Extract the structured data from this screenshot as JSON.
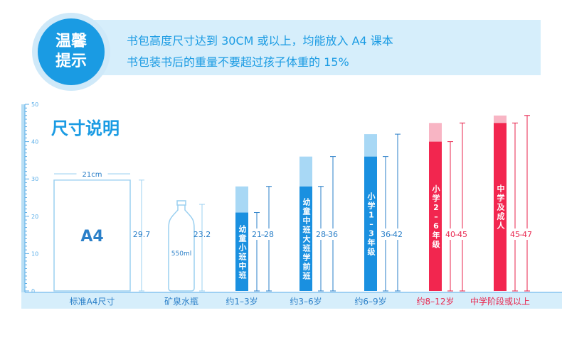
{
  "tips": {
    "badge_line1": "温馨",
    "badge_line2": "提示",
    "line1": "书包高度尺寸达到 30CM 或以上，均能放入 A4 课本",
    "line2": "书包装书后的重量不要超过孩子体重的 15%"
  },
  "colors": {
    "blue": "#1a90e0",
    "light_blue": "#a8d8f5",
    "red": "#f2264f",
    "light_red": "#f8b5c4",
    "axis": "#5aaee8",
    "outline": "#9bd0f0",
    "label_blue": "#2a7fc8",
    "label_red": "#e8264e"
  },
  "chart_data": {
    "type": "bar",
    "title": "尺寸说明",
    "ylim": [
      0,
      50
    ],
    "yticks": [
      0,
      10,
      20,
      30,
      40,
      50
    ],
    "a4": {
      "label": "A4",
      "width_label": "21cm",
      "height": 29.7,
      "height_label": "29.7",
      "category": "标准A4尺寸"
    },
    "bottle": {
      "label": "550ml",
      "height": 23.2,
      "height_label": "23.2",
      "category": "矿泉水瓶"
    },
    "bars": [
      {
        "category": "约1–3岁",
        "inner": "幼童小班中班",
        "low": 21,
        "high": 28,
        "low_label": "21",
        "high_label": "28",
        "color": "blue"
      },
      {
        "category": "约3–6岁",
        "inner": "幼童中班大班学前班",
        "low": 28,
        "high": 36,
        "low_label": "28",
        "high_label": "36",
        "color": "blue"
      },
      {
        "category": "约6–9岁",
        "inner": "小学1–3年级",
        "low": 36,
        "high": 42,
        "low_label": "36",
        "high_label": "42",
        "color": "blue"
      },
      {
        "category": "约8–12岁",
        "inner": "小学2–6年级",
        "low": 40,
        "high": 45,
        "low_label": "40",
        "high_label": "45",
        "color": "red"
      },
      {
        "category": "中学阶段或以上",
        "inner": "中学及成人",
        "low": 45,
        "high": 47,
        "low_label": "45",
        "high_label": "47",
        "color": "red"
      }
    ]
  }
}
